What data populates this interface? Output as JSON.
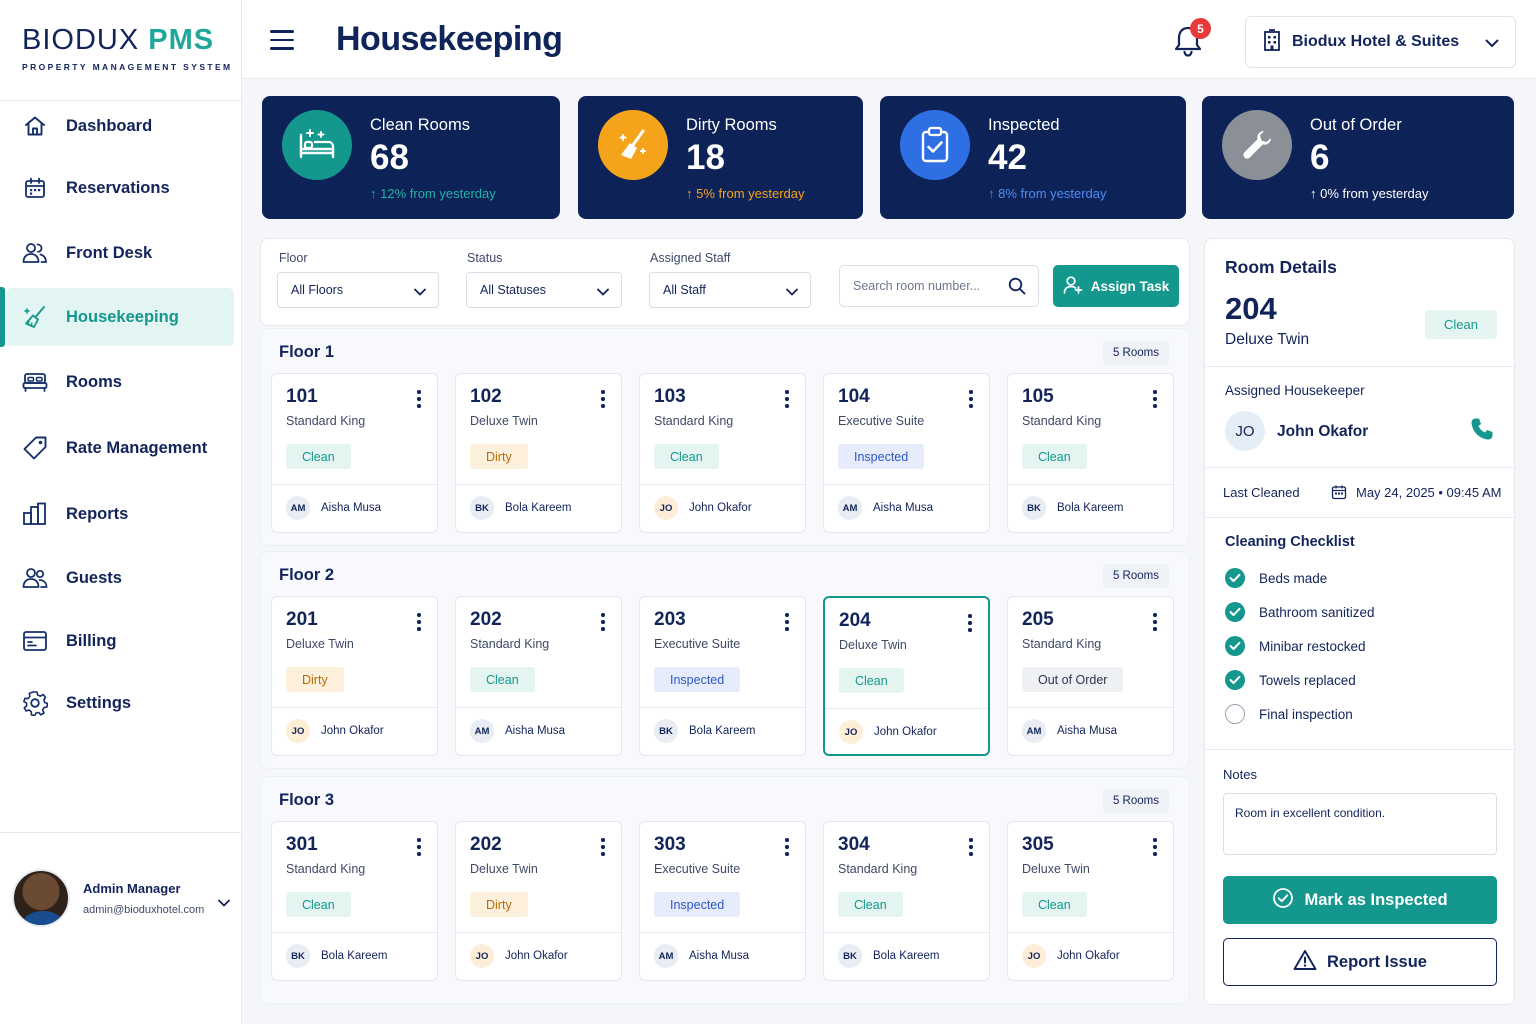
{
  "brand": {
    "name_main": "BIODUX",
    "name_accent": "PMS",
    "tagline": "PROPERTY MANAGEMENT SYSTEM"
  },
  "nav": [
    {
      "label": "Dashboard",
      "icon": "home-icon"
    },
    {
      "label": "Reservations",
      "icon": "calendar-icon"
    },
    {
      "label": "Front Desk",
      "icon": "users-icon"
    },
    {
      "label": "Housekeeping",
      "icon": "broom-icon",
      "active": true
    },
    {
      "label": "Rooms",
      "icon": "bed-icon"
    },
    {
      "label": "Rate Management",
      "icon": "tag-icon"
    },
    {
      "label": "Reports",
      "icon": "chart-icon"
    },
    {
      "label": "Guests",
      "icon": "guests-icon"
    },
    {
      "label": "Billing",
      "icon": "billing-icon"
    },
    {
      "label": "Settings",
      "icon": "gear-icon"
    }
  ],
  "user": {
    "name": "Admin Manager",
    "email": "admin@bioduxhotel.com"
  },
  "header": {
    "title": "Housekeeping",
    "notifications": "5",
    "hotel": "Biodux Hotel & Suites"
  },
  "stats": [
    {
      "label": "Clean Rooms",
      "value": "68",
      "trend": "12% from yesterday",
      "color": "#14988d",
      "trend_color": "#1fb3a4"
    },
    {
      "label": "Dirty Rooms",
      "value": "18",
      "trend": "5% from yesterday",
      "color": "#f5a31a",
      "trend_color": "#f5a31a"
    },
    {
      "label": "Inspected",
      "value": "42",
      "trend": "8% from yesterday",
      "color": "#2f6fe4",
      "trend_color": "#4f8cf0"
    },
    {
      "label": "Out of Order",
      "value": "6",
      "trend": "0% from yesterday",
      "color": "#8a8f98",
      "trend_color": "#ffffff"
    }
  ],
  "filters": {
    "floor_label": "Floor",
    "floor_value": "All Floors",
    "status_label": "Status",
    "status_value": "All Statuses",
    "staff_label": "Assigned Staff",
    "staff_value": "All Staff",
    "search_placeholder": "Search room number...",
    "assign_label": "Assign Task"
  },
  "floors": [
    {
      "title": "Floor 1",
      "count": "5 Rooms",
      "rooms": [
        {
          "number": "101",
          "type": "Standard King",
          "status": "Clean",
          "staff_initials": "AM",
          "staff": "Aisha Musa"
        },
        {
          "number": "102",
          "type": "Deluxe Twin",
          "status": "Dirty",
          "staff_initials": "BK",
          "staff": "Bola Kareem"
        },
        {
          "number": "103",
          "type": "Standard King",
          "status": "Clean",
          "staff_initials": "JO",
          "staff": "John Okafor"
        },
        {
          "number": "104",
          "type": "Executive Suite",
          "status": "Inspected",
          "staff_initials": "AM",
          "staff": "Aisha Musa"
        },
        {
          "number": "105",
          "type": "Standard King",
          "status": "Clean",
          "staff_initials": "BK",
          "staff": "Bola Kareem"
        }
      ]
    },
    {
      "title": "Floor 2",
      "count": "5 Rooms",
      "rooms": [
        {
          "number": "201",
          "type": "Deluxe Twin",
          "status": "Dirty",
          "staff_initials": "JO",
          "staff": "John Okafor"
        },
        {
          "number": "202",
          "type": "Standard King",
          "status": "Clean",
          "staff_initials": "AM",
          "staff": "Aisha Musa"
        },
        {
          "number": "203",
          "type": "Executive Suite",
          "status": "Inspected",
          "staff_initials": "BK",
          "staff": "Bola Kareem"
        },
        {
          "number": "204",
          "type": "Deluxe Twin",
          "status": "Clean",
          "staff_initials": "JO",
          "staff": "John Okafor",
          "selected": true
        },
        {
          "number": "205",
          "type": "Standard King",
          "status": "Out of Order",
          "staff_initials": "AM",
          "staff": "Aisha Musa"
        }
      ]
    },
    {
      "title": "Floor 3",
      "count": "5 Rooms",
      "rooms": [
        {
          "number": "301",
          "type": "Standard King",
          "status": "Clean",
          "staff_initials": "BK",
          "staff": "Bola Kareem"
        },
        {
          "number": "202",
          "type": "Deluxe Twin",
          "status": "Dirty",
          "staff_initials": "JO",
          "staff": "John Okafor"
        },
        {
          "number": "303",
          "type": "Executive Suite",
          "status": "Inspected",
          "staff_initials": "AM",
          "staff": "Aisha Musa"
        },
        {
          "number": "304",
          "type": "Standard King",
          "status": "Clean",
          "staff_initials": "BK",
          "staff": "Bola Kareem"
        },
        {
          "number": "305",
          "type": "Deluxe Twin",
          "status": "Clean",
          "staff_initials": "JO",
          "staff": "John Okafor"
        }
      ]
    }
  ],
  "details": {
    "title": "Room Details",
    "room": "204",
    "type": "Deluxe Twin",
    "status": "Clean",
    "housekeeper_label": "Assigned Housekeeper",
    "housekeeper_initials": "JO",
    "housekeeper": "John Okafor",
    "last_cleaned_label": "Last Cleaned",
    "last_cleaned": "May 24, 2025 • 09:45 AM",
    "checklist_title": "Cleaning Checklist",
    "checklist": [
      {
        "label": "Beds made",
        "done": true
      },
      {
        "label": "Bathroom sanitized",
        "done": true
      },
      {
        "label": "Minibar restocked",
        "done": true
      },
      {
        "label": "Towels replaced",
        "done": true
      },
      {
        "label": "Final inspection",
        "done": false
      }
    ],
    "notes_label": "Notes",
    "notes": "Room in excellent condition.",
    "inspect_label": "Mark as Inspected",
    "report_label": "Report Issue"
  }
}
